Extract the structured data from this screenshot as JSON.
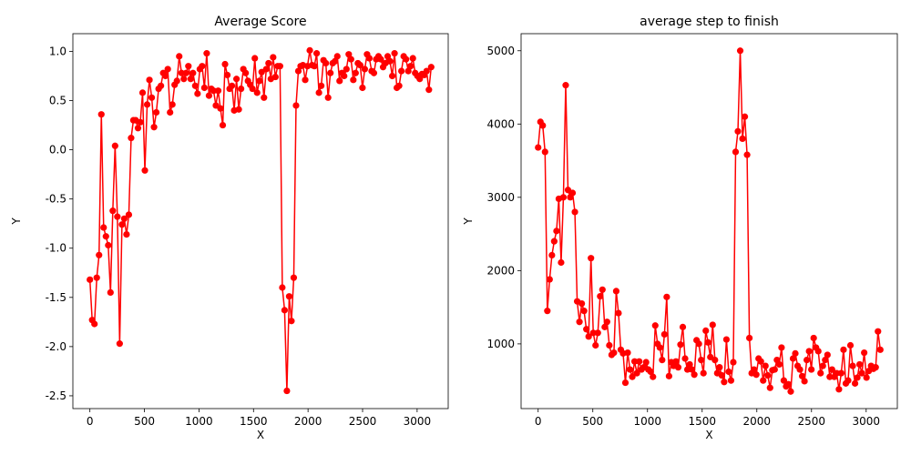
{
  "chart_data": [
    {
      "type": "line",
      "title": "Average Score",
      "xlabel": "X",
      "ylabel": "Y",
      "color": "#ff0000",
      "marker": true,
      "x": [
        0,
        21,
        42,
        63,
        84,
        105,
        126,
        147,
        168,
        189,
        210,
        231,
        252,
        273,
        294,
        315,
        336,
        357,
        378,
        399,
        420,
        441,
        462,
        483,
        504,
        525,
        546,
        567,
        588,
        609,
        630,
        651,
        672,
        693,
        714,
        735,
        756,
        777,
        798,
        819,
        840,
        861,
        882,
        903,
        924,
        945,
        966,
        987,
        1008,
        1029,
        1050,
        1071,
        1092,
        1113,
        1134,
        1155,
        1176,
        1197,
        1218,
        1239,
        1260,
        1281,
        1302,
        1323,
        1344,
        1365,
        1386,
        1407,
        1428,
        1449,
        1470,
        1491,
        1512,
        1533,
        1554,
        1575,
        1596,
        1617,
        1638,
        1659,
        1680,
        1701,
        1722,
        1743,
        1764,
        1785,
        1806,
        1827,
        1848,
        1869,
        1890,
        1911,
        1932,
        1953,
        1974,
        1995,
        2016,
        2037,
        2058,
        2079,
        2100,
        2121,
        2142,
        2163,
        2184,
        2205,
        2226,
        2247,
        2268,
        2289,
        2310,
        2331,
        2352,
        2373,
        2394,
        2415,
        2436,
        2457,
        2478,
        2499,
        2520,
        2541,
        2562,
        2583,
        2604,
        2625,
        2646,
        2667,
        2688,
        2709,
        2730,
        2751,
        2772,
        2793,
        2814,
        2835,
        2856,
        2877,
        2898,
        2919,
        2940,
        2961,
        2982,
        3003,
        3024,
        3045,
        3066,
        3087,
        3108,
        3129
      ],
      "values": [
        -1.32,
        -1.73,
        -1.77,
        -1.3,
        -1.07,
        0.36,
        -0.79,
        -0.88,
        -0.97,
        -1.45,
        -0.62,
        0.04,
        -0.68,
        -1.97,
        -0.76,
        -0.7,
        -0.86,
        -0.66,
        0.12,
        0.3,
        0.3,
        0.22,
        0.28,
        0.58,
        -0.21,
        0.46,
        0.71,
        0.53,
        0.23,
        0.38,
        0.62,
        0.65,
        0.78,
        0.75,
        0.82,
        0.38,
        0.46,
        0.66,
        0.7,
        0.95,
        0.78,
        0.72,
        0.78,
        0.85,
        0.72,
        0.78,
        0.65,
        0.57,
        0.82,
        0.85,
        0.63,
        0.98,
        0.55,
        0.62,
        0.6,
        0.45,
        0.6,
        0.42,
        0.25,
        0.87,
        0.76,
        0.62,
        0.65,
        0.4,
        0.72,
        0.41,
        0.62,
        0.82,
        0.78,
        0.7,
        0.66,
        0.62,
        0.93,
        0.58,
        0.7,
        0.79,
        0.53,
        0.82,
        0.88,
        0.72,
        0.94,
        0.74,
        0.85,
        0.85,
        -1.4,
        -1.63,
        -2.45,
        -1.49,
        -1.74,
        -1.3,
        0.45,
        0.8,
        0.85,
        0.86,
        0.71,
        0.85,
        1.01,
        0.86,
        0.85,
        0.98,
        0.58,
        0.65,
        0.91,
        0.88,
        0.53,
        0.78,
        0.88,
        0.9,
        0.95,
        0.7,
        0.78,
        0.75,
        0.82,
        0.97,
        0.92,
        0.71,
        0.78,
        0.88,
        0.86,
        0.63,
        0.82,
        0.97,
        0.93,
        0.8,
        0.78,
        0.92,
        0.95,
        0.92,
        0.84,
        0.88,
        0.95,
        0.9,
        0.75,
        0.98,
        0.63,
        0.65,
        0.8,
        0.95,
        0.92,
        0.8,
        0.85,
        0.93,
        0.78,
        0.75,
        0.72,
        0.77,
        0.76,
        0.8,
        0.61,
        0.84
      ],
      "xlim": [
        -156,
        3285
      ],
      "xticks": [
        0,
        500,
        1000,
        1500,
        2000,
        2500,
        3000
      ],
      "ylim": [
        -2.63,
        1.18
      ],
      "yticks": [
        -2.5,
        {
          "value": -2.0,
          "label": "-2.0"
        },
        -1.5,
        {
          "value": -1.0,
          "label": "-1.0"
        },
        -0.5,
        {
          "value": 0.0,
          "label": "0.0"
        },
        0.5,
        {
          "value": 1.0,
          "label": "1.0"
        }
      ]
    },
    {
      "type": "line",
      "title": "average step to finish",
      "xlabel": "X",
      "ylabel": "Y",
      "color": "#ff0000",
      "marker": true,
      "x": [
        0,
        21,
        42,
        63,
        84,
        105,
        126,
        147,
        168,
        189,
        210,
        231,
        252,
        273,
        294,
        315,
        336,
        357,
        378,
        399,
        420,
        441,
        462,
        483,
        504,
        525,
        546,
        567,
        588,
        609,
        630,
        651,
        672,
        693,
        714,
        735,
        756,
        777,
        798,
        819,
        840,
        861,
        882,
        903,
        924,
        945,
        966,
        987,
        1008,
        1029,
        1050,
        1071,
        1092,
        1113,
        1134,
        1155,
        1176,
        1197,
        1218,
        1239,
        1260,
        1281,
        1302,
        1323,
        1344,
        1365,
        1386,
        1407,
        1428,
        1449,
        1470,
        1491,
        1512,
        1533,
        1554,
        1575,
        1596,
        1617,
        1638,
        1659,
        1680,
        1701,
        1722,
        1743,
        1764,
        1785,
        1806,
        1827,
        1848,
        1869,
        1890,
        1911,
        1932,
        1953,
        1974,
        1995,
        2016,
        2037,
        2058,
        2079,
        2100,
        2121,
        2142,
        2163,
        2184,
        2205,
        2226,
        2247,
        2268,
        2289,
        2310,
        2331,
        2352,
        2373,
        2394,
        2415,
        2436,
        2457,
        2478,
        2499,
        2520,
        2541,
        2562,
        2583,
        2604,
        2625,
        2646,
        2667,
        2688,
        2709,
        2730,
        2751,
        2772,
        2793,
        2814,
        2835,
        2856,
        2877,
        2898,
        2919,
        2940,
        2961,
        2982,
        3003,
        3024,
        3045,
        3066,
        3087,
        3108,
        3129
      ],
      "values": [
        3680,
        4030,
        3980,
        3620,
        1450,
        1880,
        2210,
        2400,
        2540,
        2980,
        2110,
        3000,
        4530,
        3100,
        3000,
        3060,
        2800,
        1580,
        1300,
        1550,
        1450,
        1200,
        1100,
        2170,
        1150,
        980,
        1150,
        1650,
        1740,
        1230,
        1300,
        980,
        850,
        880,
        1720,
        1420,
        920,
        870,
        470,
        880,
        650,
        550,
        760,
        600,
        760,
        650,
        680,
        750,
        650,
        620,
        550,
        1250,
        1000,
        950,
        780,
        1130,
        1640,
        560,
        750,
        700,
        760,
        680,
        990,
        1230,
        800,
        650,
        720,
        650,
        580,
        1050,
        1000,
        780,
        600,
        1180,
        1020,
        820,
        1260,
        780,
        600,
        680,
        570,
        480,
        1060,
        620,
        500,
        750,
        3620,
        3900,
        5000,
        3800,
        4100,
        3580,
        1080,
        600,
        650,
        580,
        800,
        760,
        500,
        700,
        570,
        400,
        640,
        650,
        780,
        720,
        950,
        500,
        420,
        450,
        350,
        800,
        870,
        700,
        650,
        560,
        490,
        780,
        900,
        650,
        1080,
        950,
        900,
        600,
        700,
        780,
        850,
        550,
        650,
        550,
        600,
        380,
        600,
        920,
        460,
        500,
        980,
        700,
        460,
        540,
        720,
        600,
        880,
        540,
        630,
        700,
        660,
        680,
        1170,
        920
      ],
      "xlim": [
        -156,
        3285
      ],
      "xticks": [
        0,
        500,
        1000,
        1500,
        2000,
        2500,
        3000
      ],
      "ylim": [
        117,
        5233
      ],
      "yticks": [
        1000,
        2000,
        3000,
        4000,
        5000
      ]
    }
  ]
}
